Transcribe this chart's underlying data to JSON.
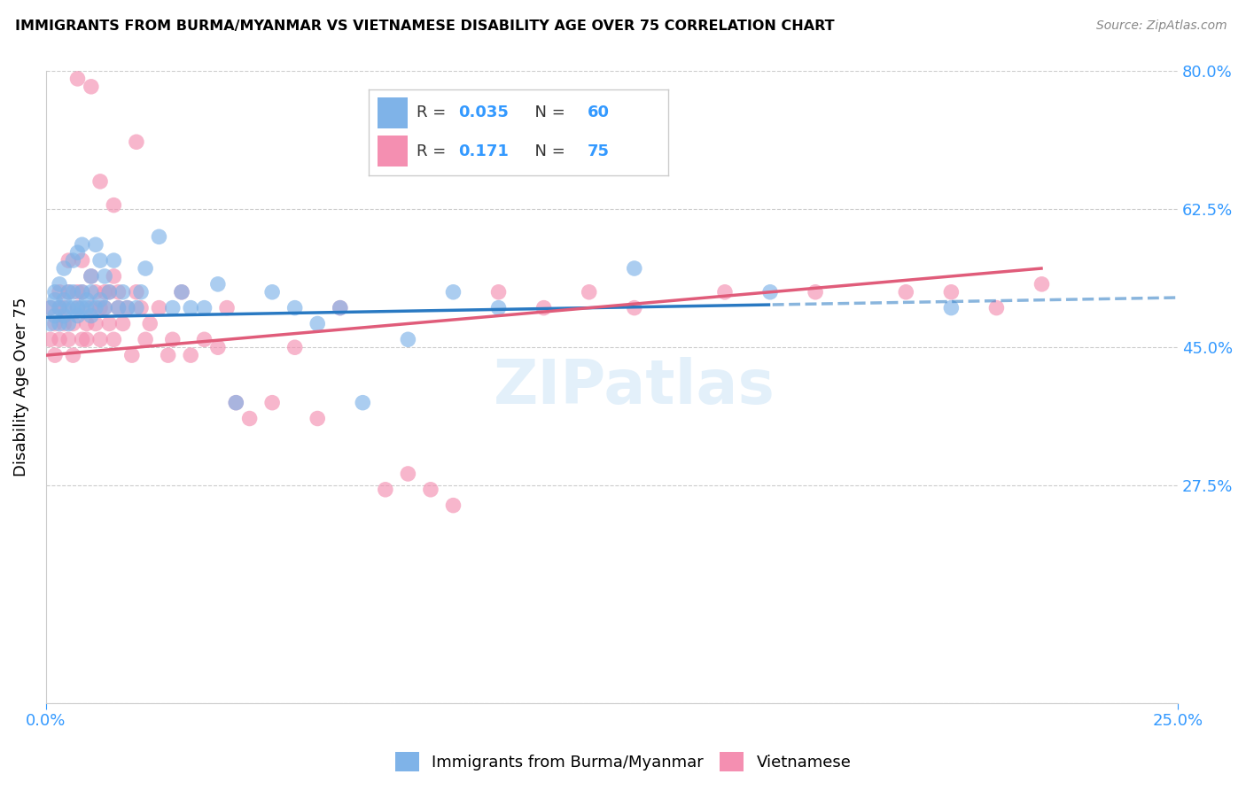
{
  "title": "IMMIGRANTS FROM BURMA/MYANMAR VS VIETNAMESE DISABILITY AGE OVER 75 CORRELATION CHART",
  "source": "Source: ZipAtlas.com",
  "ylabel": "Disability Age Over 75",
  "xlim": [
    0.0,
    0.25
  ],
  "ylim": [
    0.0,
    0.8
  ],
  "yticks": [
    0.0,
    0.275,
    0.45,
    0.625,
    0.8
  ],
  "ytick_labels": [
    "",
    "27.5%",
    "45.0%",
    "62.5%",
    "80.0%"
  ],
  "xticks": [
    0.0,
    0.25
  ],
  "xtick_labels": [
    "0.0%",
    "25.0%"
  ],
  "R_burma": 0.035,
  "N_burma": 60,
  "R_viet": 0.171,
  "N_viet": 75,
  "color_burma": "#7fb3e8",
  "color_viet": "#f48fb1",
  "color_burma_line": "#2979c2",
  "color_viet_line": "#e05c7a",
  "color_axis_labels": "#3399ff",
  "watermark": "ZIPatlas",
  "burma_x": [
    0.001,
    0.001,
    0.002,
    0.002,
    0.002,
    0.003,
    0.003,
    0.003,
    0.004,
    0.004,
    0.004,
    0.005,
    0.005,
    0.005,
    0.006,
    0.006,
    0.006,
    0.007,
    0.007,
    0.007,
    0.008,
    0.008,
    0.008,
    0.009,
    0.009,
    0.01,
    0.01,
    0.01,
    0.011,
    0.011,
    0.012,
    0.012,
    0.013,
    0.013,
    0.014,
    0.015,
    0.016,
    0.017,
    0.018,
    0.02,
    0.021,
    0.022,
    0.025,
    0.028,
    0.03,
    0.032,
    0.035,
    0.038,
    0.042,
    0.05,
    0.055,
    0.06,
    0.065,
    0.07,
    0.08,
    0.09,
    0.1,
    0.13,
    0.16,
    0.2
  ],
  "burma_y": [
    0.5,
    0.48,
    0.52,
    0.51,
    0.49,
    0.5,
    0.48,
    0.53,
    0.49,
    0.51,
    0.55,
    0.52,
    0.5,
    0.48,
    0.56,
    0.52,
    0.5,
    0.57,
    0.5,
    0.49,
    0.52,
    0.5,
    0.58,
    0.51,
    0.5,
    0.54,
    0.52,
    0.49,
    0.58,
    0.5,
    0.56,
    0.51,
    0.54,
    0.5,
    0.52,
    0.56,
    0.5,
    0.52,
    0.5,
    0.5,
    0.52,
    0.55,
    0.59,
    0.5,
    0.52,
    0.5,
    0.5,
    0.53,
    0.38,
    0.52,
    0.5,
    0.48,
    0.5,
    0.38,
    0.46,
    0.52,
    0.5,
    0.55,
    0.52,
    0.5
  ],
  "viet_x": [
    0.001,
    0.001,
    0.002,
    0.002,
    0.003,
    0.003,
    0.003,
    0.004,
    0.004,
    0.005,
    0.005,
    0.005,
    0.006,
    0.006,
    0.007,
    0.007,
    0.008,
    0.008,
    0.008,
    0.009,
    0.009,
    0.01,
    0.01,
    0.011,
    0.011,
    0.012,
    0.012,
    0.013,
    0.013,
    0.014,
    0.014,
    0.015,
    0.015,
    0.016,
    0.016,
    0.017,
    0.018,
    0.019,
    0.02,
    0.021,
    0.022,
    0.023,
    0.025,
    0.027,
    0.028,
    0.03,
    0.032,
    0.035,
    0.038,
    0.04,
    0.042,
    0.045,
    0.05,
    0.055,
    0.06,
    0.065,
    0.075,
    0.08,
    0.085,
    0.09,
    0.1,
    0.11,
    0.12,
    0.13,
    0.15,
    0.17,
    0.19,
    0.2,
    0.21,
    0.22,
    0.007,
    0.01,
    0.012,
    0.015,
    0.02
  ],
  "viet_y": [
    0.46,
    0.5,
    0.48,
    0.44,
    0.5,
    0.46,
    0.52,
    0.48,
    0.5,
    0.46,
    0.52,
    0.56,
    0.48,
    0.44,
    0.5,
    0.52,
    0.46,
    0.52,
    0.56,
    0.48,
    0.46,
    0.5,
    0.54,
    0.48,
    0.52,
    0.46,
    0.5,
    0.52,
    0.5,
    0.48,
    0.52,
    0.54,
    0.46,
    0.52,
    0.5,
    0.48,
    0.5,
    0.44,
    0.52,
    0.5,
    0.46,
    0.48,
    0.5,
    0.44,
    0.46,
    0.52,
    0.44,
    0.46,
    0.45,
    0.5,
    0.38,
    0.36,
    0.38,
    0.45,
    0.36,
    0.5,
    0.27,
    0.29,
    0.27,
    0.25,
    0.52,
    0.5,
    0.52,
    0.5,
    0.52,
    0.52,
    0.52,
    0.52,
    0.5,
    0.53,
    0.79,
    0.78,
    0.66,
    0.63,
    0.71
  ]
}
